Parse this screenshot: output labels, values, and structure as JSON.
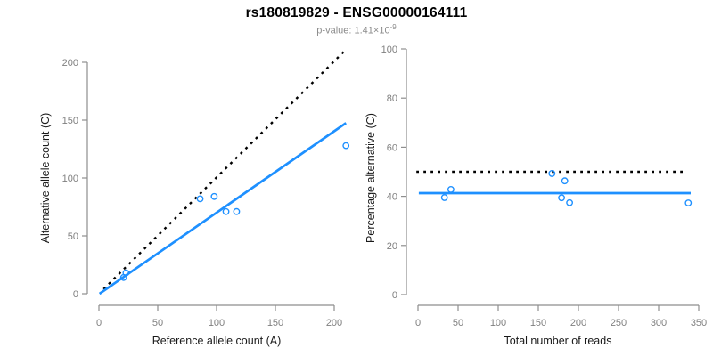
{
  "header": {
    "title": "rs180819829 - ENSG00000164111",
    "subtitle": {
      "text": "p-value: 1.41×10",
      "exponent": "-9"
    }
  },
  "colors": {
    "accent_blue": "#1E90FF",
    "identity_black": "#000000",
    "axis_line": "#8E8E8E",
    "tick_label": "#7F7F7F",
    "axis_title": "#1A1A1A",
    "subtitle_gray": "#8C8C8C",
    "background": "#FFFFFF"
  },
  "chart_data": [
    {
      "type": "scatter",
      "name": "allele-count-scatter",
      "xlabel": "Reference allele count (A)",
      "ylabel": "Alternative allele count (C)",
      "xlim": [
        0,
        211
      ],
      "ylim": [
        0,
        211
      ],
      "xticks": [
        0,
        50,
        100,
        150,
        200
      ],
      "yticks": [
        0,
        50,
        100,
        150,
        200
      ],
      "grid": false,
      "legend": "none",
      "point_style": "open-circle",
      "points": [
        [
          21,
          14
        ],
        [
          23,
          18
        ],
        [
          86,
          82
        ],
        [
          98,
          84
        ],
        [
          108,
          71
        ],
        [
          117,
          71
        ],
        [
          210,
          128
        ]
      ],
      "lines": [
        {
          "name": "identity",
          "style": "dotted",
          "color": "#000000",
          "from": [
            4,
            4
          ],
          "to": [
            210,
            211
          ]
        },
        {
          "name": "fitted-ratio",
          "style": "solid",
          "color": "#1E90FF",
          "from": [
            0.5,
            0
          ],
          "to": [
            210,
            147.5
          ]
        }
      ]
    },
    {
      "type": "scatter",
      "name": "percentage-scatter",
      "xlabel": "Total number of reads",
      "ylabel": "Percentage alternative (C)",
      "xlim": [
        0,
        350
      ],
      "ylim": [
        0,
        100
      ],
      "xticks": [
        0,
        50,
        100,
        150,
        200,
        250,
        300,
        350
      ],
      "yticks": [
        0,
        20,
        40,
        60,
        80,
        100
      ],
      "grid": false,
      "legend": "none",
      "point_style": "open-circle",
      "points": [
        [
          33,
          39.5
        ],
        [
          41,
          42.8
        ],
        [
          167,
          49.3
        ],
        [
          183,
          46.3
        ],
        [
          179,
          39.4
        ],
        [
          189,
          37.4
        ],
        [
          337,
          37.3
        ]
      ],
      "lines": [
        {
          "name": "expected-50pct",
          "style": "dotted",
          "color": "#000000",
          "from": [
            -2,
            50
          ],
          "to": [
            334,
            50
          ]
        },
        {
          "name": "mean-alt-pct",
          "style": "solid",
          "color": "#1E90FF",
          "from": [
            1,
            41.3
          ],
          "to": [
            340,
            41.3
          ]
        }
      ]
    }
  ]
}
